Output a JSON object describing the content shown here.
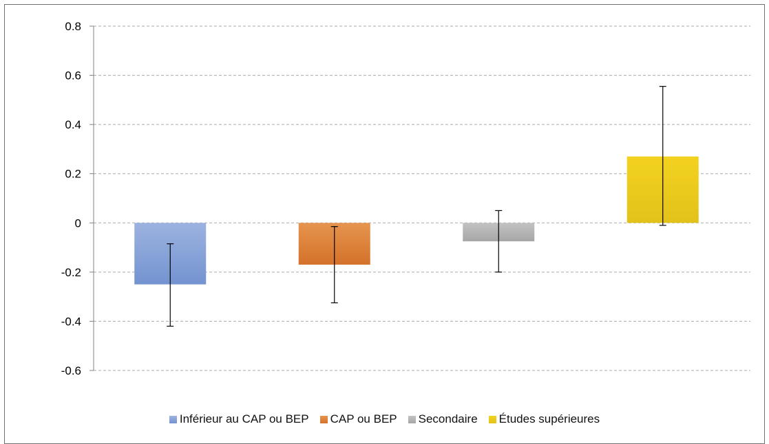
{
  "chart_data": {
    "type": "bar",
    "title": "",
    "xlabel": "",
    "ylabel": "",
    "ylim": [
      -0.6,
      0.8
    ],
    "yticks": [
      0.8,
      0.6,
      0.4,
      0.2,
      0,
      -0.2,
      -0.4,
      -0.6
    ],
    "ytick_labels": [
      "0.8",
      "0.6",
      "0.4",
      "0.2",
      "0",
      "-0.2",
      "-0.4",
      "-0.6"
    ],
    "grid": true,
    "legend_position": "bottom",
    "series": [
      {
        "name": "Inférieur au CAP ou BEP",
        "value": -0.25,
        "error_low": -0.42,
        "error_high": -0.085,
        "color": "#7393d0",
        "color_light": "#9cb3e0"
      },
      {
        "name": "CAP ou BEP",
        "value": -0.17,
        "error_low": -0.325,
        "error_high": -0.015,
        "color": "#d4722a",
        "color_light": "#e6944e"
      },
      {
        "name": "Secondaire",
        "value": -0.075,
        "error_low": -0.2,
        "error_high": 0.05,
        "color": "#a6a6a6",
        "color_light": "#c2c2c2"
      },
      {
        "name": "Études supérieures",
        "value": 0.27,
        "error_low": -0.01,
        "error_high": 0.555,
        "color": "#e2c21a",
        "color_light": "#f3d21f"
      }
    ]
  }
}
